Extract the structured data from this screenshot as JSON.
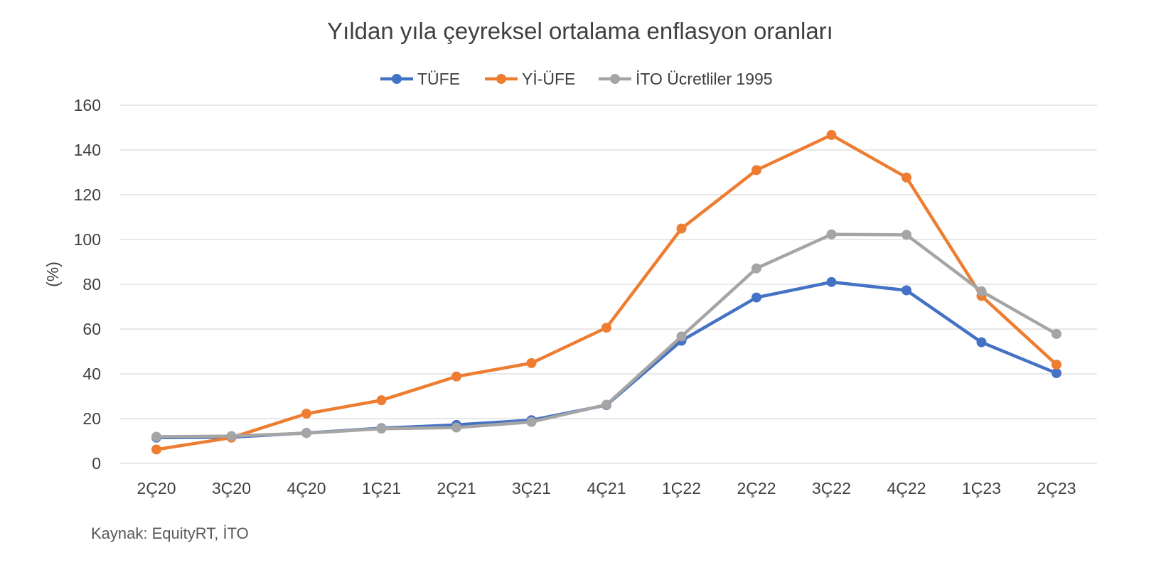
{
  "chart_data": {
    "type": "line",
    "title": "Yıldan yıla çeyreksel ortalama enflasyon oranları",
    "ylabel": "(%)",
    "xlabel": "",
    "ylim": [
      0,
      160
    ],
    "yticks": [
      0,
      20,
      40,
      60,
      80,
      100,
      120,
      140,
      160
    ],
    "grid": true,
    "legend_position": "top-center",
    "categories": [
      "2Ç20",
      "3Ç20",
      "4Ç20",
      "1Ç21",
      "2Ç21",
      "3Ç21",
      "4Ç21",
      "1Ç22",
      "2Ç22",
      "3Ç22",
      "4Ç22",
      "1Ç23",
      "2Ç23"
    ],
    "series": [
      {
        "name": "TÜFE",
        "color": "#4472c4",
        "values": [
          11.5,
          11.7,
          13.6,
          15.7,
          17.2,
          19.3,
          26.0,
          54.8,
          74.1,
          81.0,
          77.3,
          54.1,
          40.3
        ]
      },
      {
        "name": "Yİ-ÜFE",
        "color": "#ed7d31",
        "values": [
          6.2,
          11.5,
          22.2,
          28.2,
          38.8,
          44.8,
          60.6,
          104.9,
          131.0,
          146.7,
          127.7,
          74.8,
          44.1
        ]
      },
      {
        "name": "İTO  Ücretliler 1995",
        "color": "#a5a5a5",
        "values": [
          11.9,
          12.2,
          13.5,
          15.5,
          16.0,
          18.5,
          26.2,
          56.7,
          87.1,
          102.3,
          102.1,
          76.9,
          57.8
        ]
      }
    ],
    "source": "Kaynak: EquityRT, İTO"
  }
}
